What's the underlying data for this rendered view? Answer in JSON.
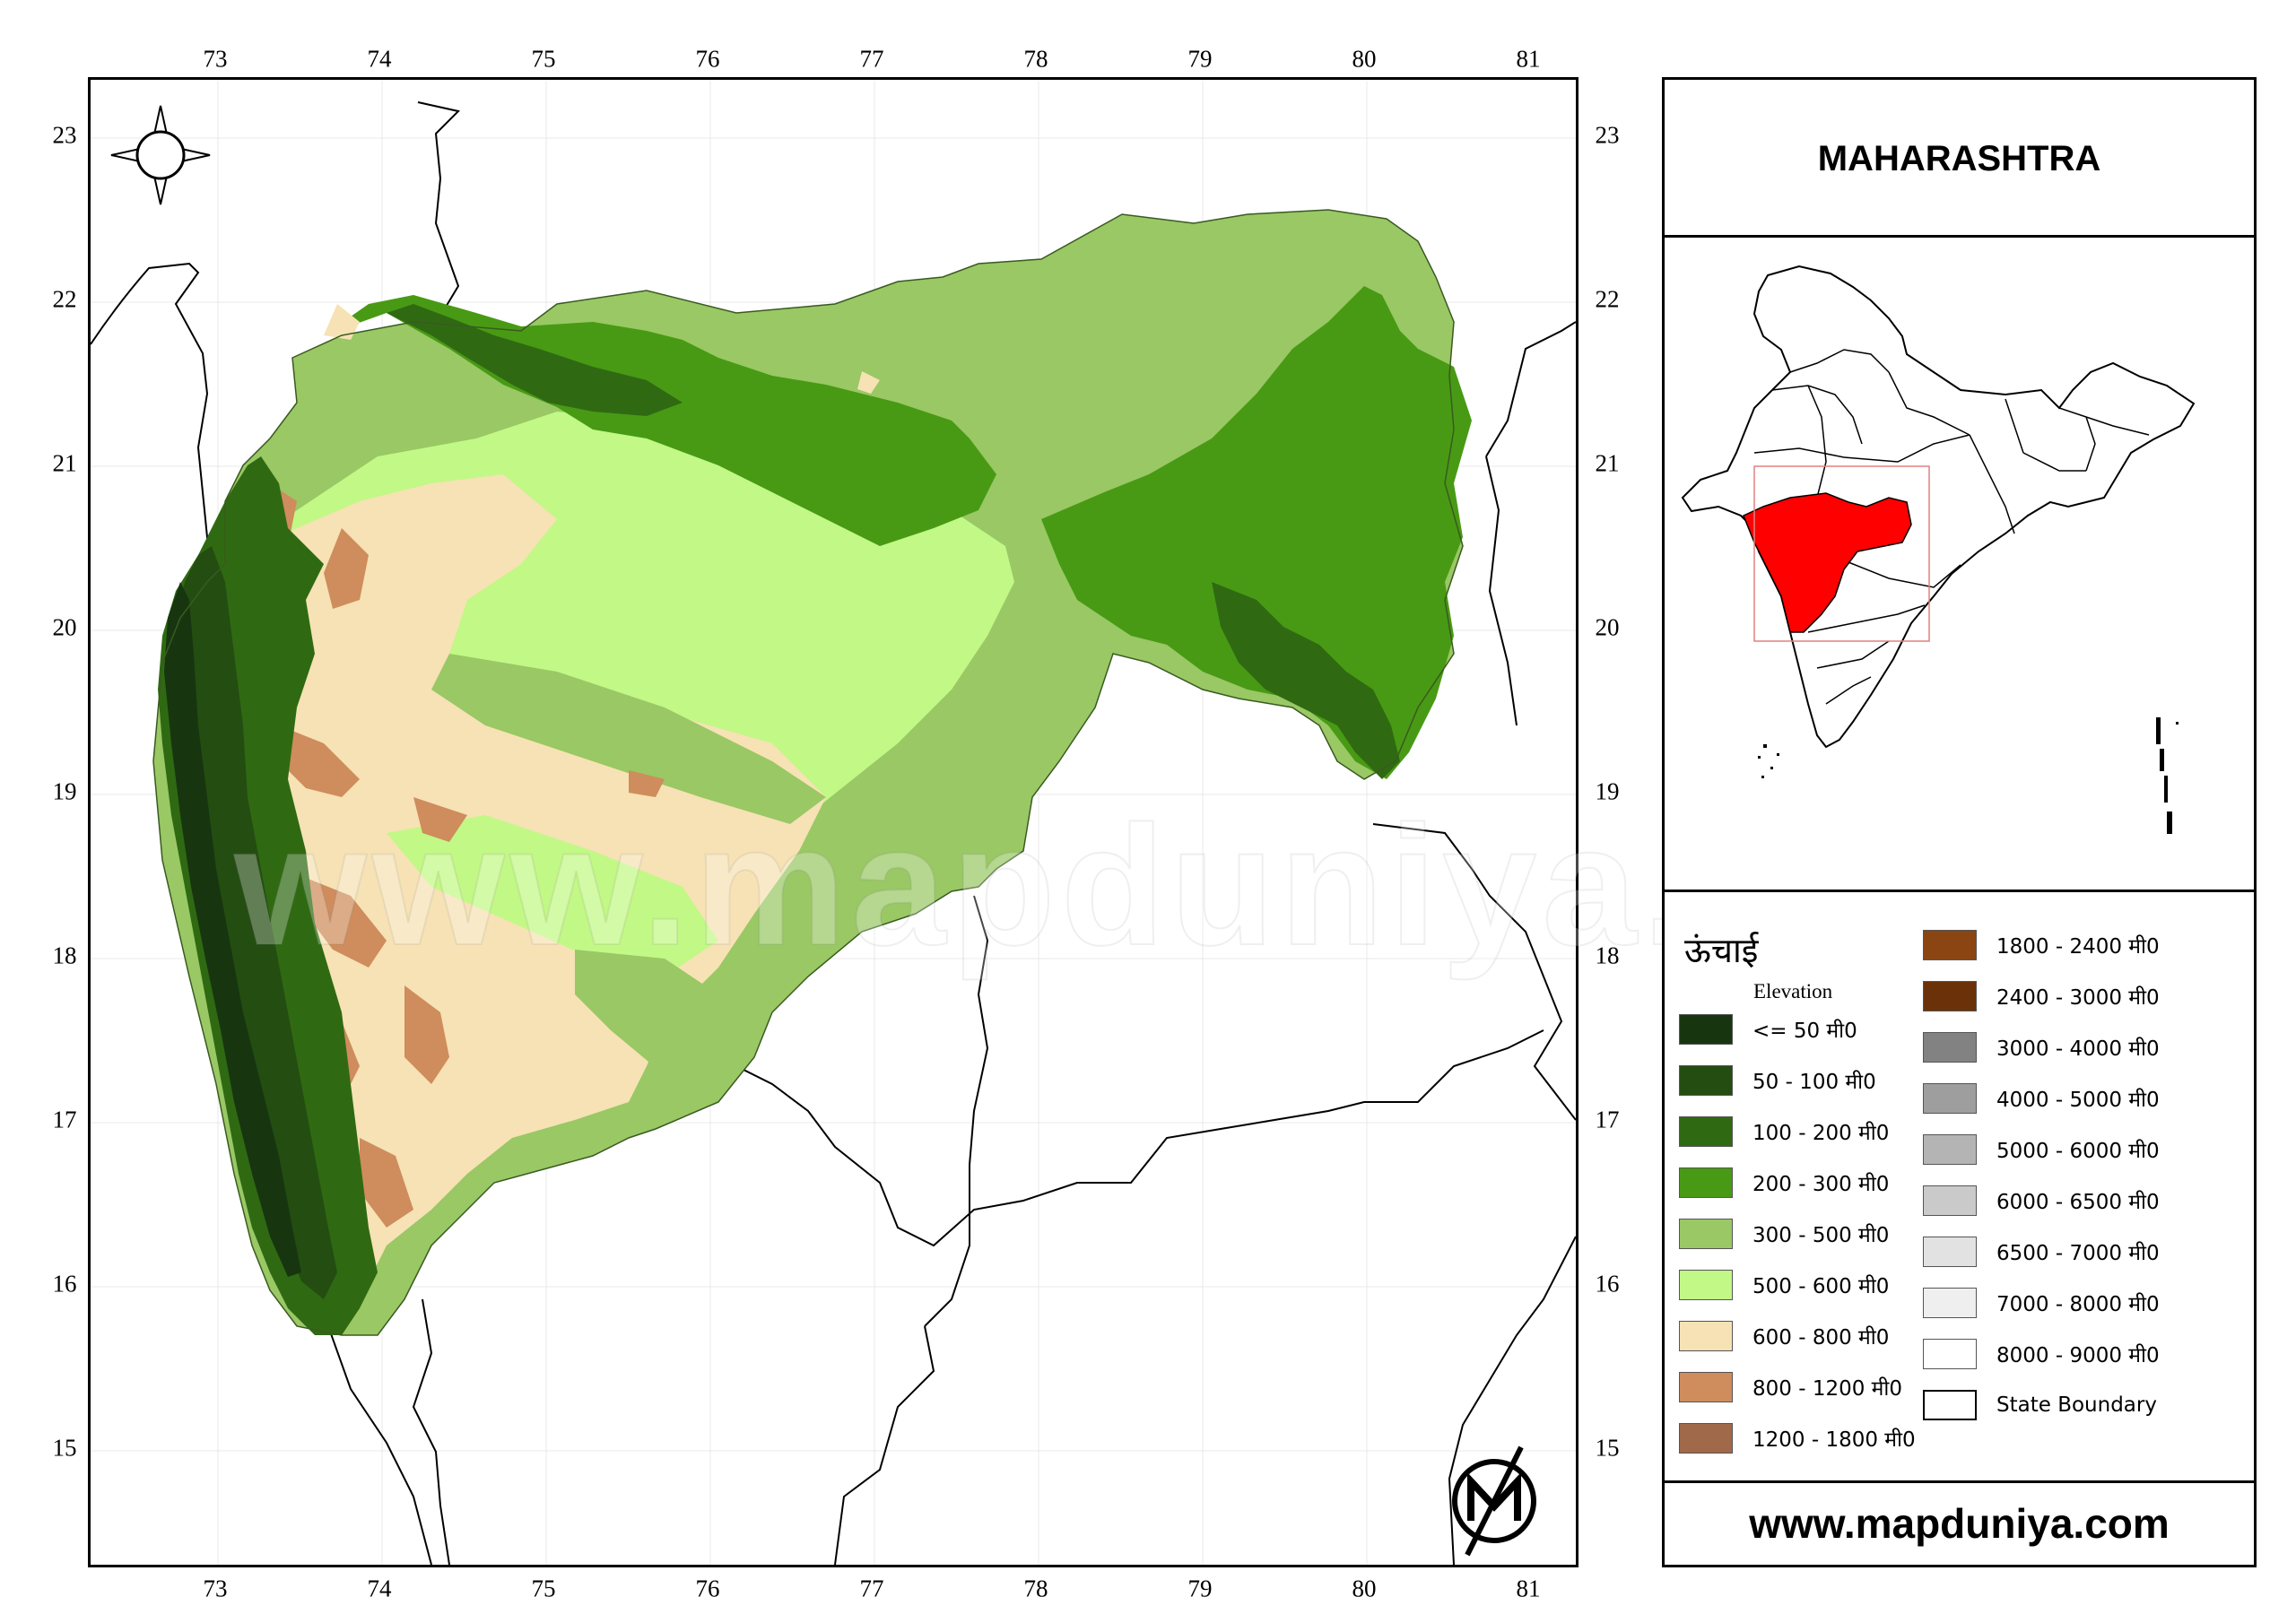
{
  "map": {
    "top_ticks": [
      "73",
      "74",
      "75",
      "76",
      "77",
      "78",
      "79",
      "80",
      "81"
    ],
    "bottom_ticks": [
      "73",
      "74",
      "75",
      "76",
      "77",
      "78",
      "79",
      "80",
      "81"
    ],
    "left_ticks": [
      "23",
      "22",
      "21",
      "20",
      "19",
      "18",
      "17",
      "16",
      "15"
    ],
    "right_ticks": [
      "23",
      "22",
      "21",
      "20",
      "19",
      "18",
      "17",
      "16",
      "15"
    ],
    "watermark": "www.mapduniya.com",
    "icons": [
      "compass-rose-icon",
      "mapduniya-logo-icon"
    ]
  },
  "title": "MAHARASHTRA",
  "website": "www.mapduniya.com",
  "legend": {
    "title_hindi": "ऊंचाई",
    "title_english": "Elevation",
    "items_left": [
      {
        "label": "<= 50 मी0",
        "color": "#173610"
      },
      {
        "label": "50 - 100 मी0",
        "color": "#244d12"
      },
      {
        "label": "100 - 200 मी0",
        "color": "#2f6a12"
      },
      {
        "label": "200 - 300 मी0",
        "color": "#489a14"
      },
      {
        "label": "300 - 500 मी0",
        "color": "#99c865"
      },
      {
        "label": "500 - 600 मी0",
        "color": "#c2f886"
      },
      {
        "label": "600 - 800 मी0",
        "color": "#f6e2b4"
      },
      {
        "label": "800 - 1200 मी0",
        "color": "#cf8c5c"
      },
      {
        "label": "1200 - 1800 मी0",
        "color": "#a0694a"
      }
    ],
    "items_right": [
      {
        "label": "1800 - 2400 मी0",
        "color": "#8b4513"
      },
      {
        "label": "2400 - 3000 मी0",
        "color": "#6b3209"
      },
      {
        "label": "3000 - 4000 मी0",
        "color": "#828282"
      },
      {
        "label": "4000 - 5000 मी0",
        "color": "#9e9e9e"
      },
      {
        "label": "5000 - 6000 मी0",
        "color": "#b4b4b4"
      },
      {
        "label": "6000 - 6500 मी0",
        "color": "#cacaca"
      },
      {
        "label": "6500 - 7000 मी0",
        "color": "#e2e2e2"
      },
      {
        "label": "7000 - 8000 मी0",
        "color": "#efefef"
      },
      {
        "label": "8000 - 9000 मी0",
        "color": "#ffffff"
      },
      {
        "label": "State Boundary",
        "color": "#ffffff"
      }
    ]
  },
  "inset": {
    "highlight_color": "#ff0000"
  }
}
